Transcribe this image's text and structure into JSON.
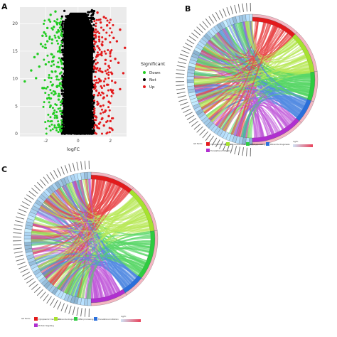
{
  "panels": {
    "a": {
      "letter": "A"
    },
    "b": {
      "letter": "B"
    },
    "c": {
      "letter": "C"
    }
  },
  "chart_data": [
    {
      "type": "scatter",
      "panel": "A",
      "xlabel": "logFC",
      "ylabel": "",
      "xlim": [
        -3.6,
        3.0
      ],
      "ylim": [
        -0.5,
        23
      ],
      "xticks": [
        -2,
        0,
        2
      ],
      "yticks": [
        0,
        5,
        10,
        15,
        20
      ],
      "legend": {
        "title": "Significant",
        "position": "right",
        "entries": [
          {
            "name": "Down",
            "color": "#22cc22"
          },
          {
            "name": "Not",
            "color": "#000000"
          },
          {
            "name": "Up",
            "color": "#e31a1c"
          }
        ]
      },
      "series": [
        {
          "name": "Down",
          "color": "#22cc22",
          "points": [
            [
              -3.3,
              9.5
            ],
            [
              -2.9,
              11.5
            ],
            [
              -2.7,
              13.9
            ],
            [
              -2.5,
              14.5
            ],
            [
              -2.4,
              12.2
            ],
            [
              -2.3,
              16.3
            ],
            [
              -2.2,
              17.8
            ],
            [
              -2.1,
              18.4
            ],
            [
              -2.0,
              15.6
            ],
            [
              -1.9,
              19.2
            ],
            [
              -1.8,
              20.7
            ],
            [
              -1.7,
              21.6
            ],
            [
              -1.6,
              17.1
            ],
            [
              -1.5,
              14.0
            ],
            [
              -1.4,
              11.3
            ],
            [
              -1.3,
              8.5
            ],
            [
              -1.2,
              6.2
            ],
            [
              -1.1,
              4.1
            ],
            [
              -2.6,
              10.1
            ],
            [
              -2.2,
              8.3
            ],
            [
              -1.9,
              6.4
            ],
            [
              -1.7,
              5.1
            ],
            [
              -1.5,
              3.8
            ],
            [
              -1.3,
              2.9
            ],
            [
              -1.2,
              1.7
            ],
            [
              -1.1,
              1.2
            ],
            [
              -2.0,
              12.6
            ],
            [
              -1.8,
              10.2
            ],
            [
              -1.6,
              8.8
            ],
            [
              -1.4,
              7.3
            ],
            [
              -1.9,
              16.8
            ],
            [
              -1.6,
              13.1
            ],
            [
              -1.3,
              10.4
            ],
            [
              -1.2,
              12.1
            ],
            [
              -1.1,
              9.2
            ],
            [
              -1.1,
              14.8
            ],
            [
              -1.2,
              18.6
            ],
            [
              -1.3,
              20.1
            ],
            [
              -1.4,
              22.2
            ],
            [
              -1.5,
              19.4
            ]
          ]
        },
        {
          "name": "Up",
          "color": "#e31a1c",
          "points": [
            [
              2.9,
              15.6
            ],
            [
              2.6,
              18.9
            ],
            [
              2.4,
              16.8
            ],
            [
              2.2,
              17.4
            ],
            [
              2.0,
              14.9
            ],
            [
              1.9,
              12.3
            ],
            [
              1.8,
              19.7
            ],
            [
              1.7,
              13.4
            ],
            [
              1.6,
              21.2
            ],
            [
              1.5,
              11.2
            ],
            [
              1.4,
              9.6
            ],
            [
              1.3,
              7.4
            ],
            [
              1.2,
              5.3
            ],
            [
              1.1,
              3.1
            ],
            [
              2.5,
              12.9
            ],
            [
              2.3,
              9.3
            ],
            [
              2.1,
              7.6
            ],
            [
              1.9,
              5.8
            ],
            [
              1.7,
              4.2
            ],
            [
              1.5,
              2.8
            ],
            [
              1.3,
              1.8
            ],
            [
              1.2,
              1.1
            ],
            [
              2.1,
              10.9
            ],
            [
              1.8,
              8.9
            ],
            [
              1.6,
              6.6
            ],
            [
              1.4,
              5.0
            ],
            [
              2.0,
              2.3
            ],
            [
              1.1,
              12.7
            ],
            [
              1.2,
              15.9
            ],
            [
              1.3,
              17.6
            ],
            [
              1.4,
              20.2
            ],
            [
              1.1,
              18.9
            ],
            [
              1.2,
              22.0
            ],
            [
              1.5,
              16.1
            ],
            [
              1.7,
              17.2
            ],
            [
              2.3,
              13.6
            ],
            [
              2.8,
              11.0
            ],
            [
              2.6,
              8.1
            ],
            [
              1.9,
              3.2
            ],
            [
              1.6,
              1.5
            ]
          ]
        },
        {
          "name": "Not",
          "color": "#000000",
          "envelope": {
            "xmin": -1.0,
            "xmax": 1.0,
            "ymax": 22.5
          }
        }
      ]
    },
    {
      "type": "chord",
      "panel": "B",
      "legend": {
        "title": "GO Terms",
        "entries": [
          {
            "label": "Cytoplasmic translation",
            "color": "#e31a1c"
          },
          {
            "label": "Ribosomal small subunit biogenesis",
            "color": "#a6e22e"
          },
          {
            "label": "rRNA processing",
            "color": "#2ecc40"
          },
          {
            "label": "Ribosome biogenesis",
            "color": "#2a6fdb"
          },
          {
            "label": "Translational initiation",
            "color": "#b02fd0"
          }
        ],
        "colorbar": {
          "label": "logFC",
          "low": "#cfe3f5",
          "high": "#e9415a"
        }
      },
      "term_sectors": [
        {
          "color": "#e31a1c",
          "span": 0.24
        },
        {
          "color": "#a6e22e",
          "span": 0.22
        },
        {
          "color": "#2ecc40",
          "span": 0.15
        },
        {
          "color": "#2a6fdb",
          "span": 0.12
        },
        {
          "color": "#b02fd0",
          "span": 0.27
        }
      ],
      "gene_count": 60
    },
    {
      "type": "chord",
      "panel": "C",
      "legend": {
        "title": "GO Terms",
        "entries": [
          {
            "label": "Cytoplasmic translation",
            "color": "#e31a1c"
          },
          {
            "label": "Ribosome biogenesis",
            "color": "#a6e22e"
          },
          {
            "label": "rRNA processing",
            "color": "#2ecc40"
          },
          {
            "label": "Translational initiation",
            "color": "#2a6fdb"
          },
          {
            "label": "Protein targeting",
            "color": "#b02fd0"
          }
        ],
        "colorbar": {
          "label": "logFC",
          "low": "#cfe3f5",
          "high": "#e9415a"
        }
      },
      "term_sectors": [
        {
          "color": "#e31a1c",
          "span": 0.22
        },
        {
          "color": "#a6e22e",
          "span": 0.24
        },
        {
          "color": "#2ecc40",
          "span": 0.25
        },
        {
          "color": "#2a6fdb",
          "span": 0.11
        },
        {
          "color": "#b02fd0",
          "span": 0.18
        }
      ],
      "gene_count": 60
    }
  ]
}
